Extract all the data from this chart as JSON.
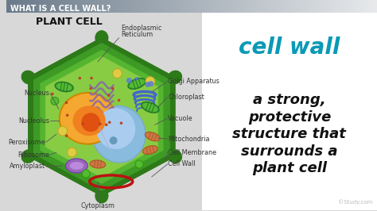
{
  "bg_color": "#d8d8d8",
  "header_gradient_left": "#6a7a8a",
  "header_gradient_right": "#e8eaec",
  "header_text": "WHAT IS A CELL WALL?",
  "header_text_color": "#ffffff",
  "subtitle_text": "PLANT CELL",
  "subtitle_color": "#111111",
  "right_panel_color": "#ffffff",
  "title_color": "#0a9ab5",
  "title_text": "cell wall",
  "desc_text": "a strong,\nprotective\nstructure that\nsurrounds a\nplant cell",
  "desc_color": "#111111",
  "watermark": "©Study.com",
  "watermark_color": "#bbbbbb",
  "cell_wall_outer_color": "#2d7a18",
  "cell_wall_mid_color": "#3d9a25",
  "cell_membrane_color": "#55b530",
  "cytoplasm_color": "#88cc44",
  "cytoplasm_light": "#a8dd55",
  "nucleus_outer_color": "#f5a830",
  "nucleus_mid_color": "#f08020",
  "nucleus_inner_color": "#e05010",
  "vacuole_color": "#88bbdd",
  "vacuole_inner_color": "#aaccee",
  "er_color": "#8866aa",
  "chloro_outer": "#339933",
  "chloro_inner": "#55bb33",
  "mito_color": "#cc7744",
  "perox_color": "#ddcc44",
  "amylo_color": "#bb88cc",
  "label_color": "#333333",
  "line_color": "#555555"
}
